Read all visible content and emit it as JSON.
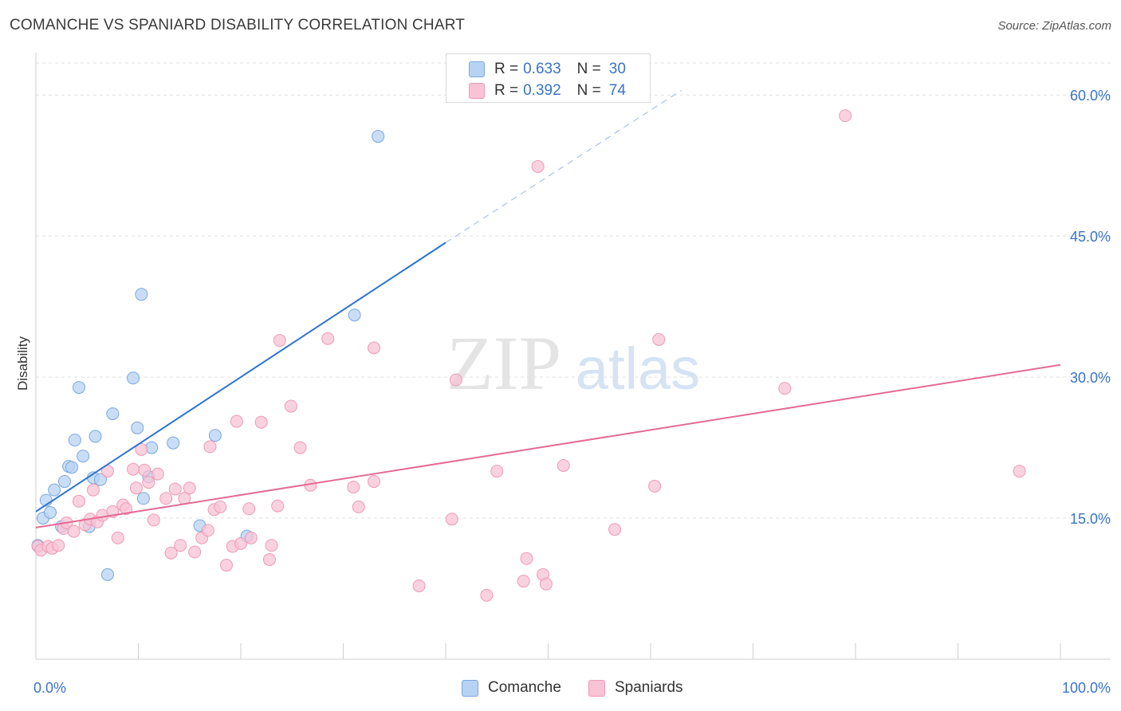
{
  "title": "COMANCHE VS SPANIARD DISABILITY CORRELATION CHART",
  "source": "Source: ZipAtlas.com",
  "watermark": {
    "zip": "ZIP",
    "atlas": "atlas"
  },
  "colors": {
    "comanche_fill": "#b7d3f3",
    "comanche_stroke": "#7aa7de",
    "comanche_line": "#2c73d2",
    "spaniards_fill": "#f8c3d4",
    "spaniards_stroke": "#ee9ab5",
    "spaniards_line": "#e46a95",
    "axis_label": "#3a73c9",
    "grid": "#e0e0e0"
  },
  "legend": {
    "comanche": {
      "r_label": "R =",
      "r_value": "0.633",
      "n_label": "N =",
      "n_value": "30"
    },
    "spaniards": {
      "r_label": "R =",
      "r_value": "0.392",
      "n_label": "N =",
      "n_value": "74"
    }
  },
  "chart_data": {
    "type": "scatter",
    "title": "COMANCHE VS SPANIARD DISABILITY CORRELATION CHART",
    "xlabel": "",
    "ylabel": "Disability",
    "xlim": [
      0,
      100
    ],
    "ylim": [
      0,
      64
    ],
    "x_tick_labels": [
      "0.0%",
      "100.0%"
    ],
    "y_ticks": [
      15,
      30,
      45,
      60
    ],
    "y_tick_labels": [
      "15.0%",
      "30.0%",
      "45.0%",
      "60.0%"
    ],
    "grid": true,
    "legend_position": "top-center",
    "series": [
      {
        "name": "Comanche",
        "points": [
          [
            0.2,
            12.1
          ],
          [
            0.7,
            15.0
          ],
          [
            1.0,
            16.9
          ],
          [
            1.4,
            15.6
          ],
          [
            1.8,
            18.0
          ],
          [
            2.5,
            14.1
          ],
          [
            2.8,
            18.9
          ],
          [
            3.2,
            20.5
          ],
          [
            3.5,
            20.4
          ],
          [
            3.8,
            23.3
          ],
          [
            4.2,
            28.9
          ],
          [
            4.6,
            21.6
          ],
          [
            5.2,
            14.1
          ],
          [
            5.6,
            19.3
          ],
          [
            5.8,
            23.7
          ],
          [
            6.3,
            19.1
          ],
          [
            7.5,
            26.1
          ],
          [
            7.0,
            9.0
          ],
          [
            9.5,
            29.9
          ],
          [
            9.9,
            24.6
          ],
          [
            10.3,
            38.8
          ],
          [
            10.5,
            17.1
          ],
          [
            11.0,
            19.4
          ],
          [
            11.3,
            22.5
          ],
          [
            13.4,
            23.0
          ],
          [
            16.0,
            14.2
          ],
          [
            17.5,
            23.8
          ],
          [
            20.6,
            13.1
          ],
          [
            31.1,
            36.6
          ],
          [
            33.4,
            55.6
          ]
        ],
        "trend": {
          "x0": 0,
          "y0": 15.7,
          "x1": 40,
          "y1": 44.3,
          "dashed_to_x": 63,
          "dashed_to_y": 60.5
        }
      },
      {
        "name": "Spaniards",
        "points": [
          [
            0.2,
            12.0
          ],
          [
            0.5,
            11.6
          ],
          [
            1.2,
            12.0
          ],
          [
            1.6,
            11.8
          ],
          [
            2.2,
            12.1
          ],
          [
            2.7,
            13.9
          ],
          [
            3.0,
            14.5
          ],
          [
            3.7,
            13.6
          ],
          [
            4.2,
            16.8
          ],
          [
            4.8,
            14.3
          ],
          [
            5.3,
            14.9
          ],
          [
            5.6,
            18.0
          ],
          [
            6.0,
            14.6
          ],
          [
            6.5,
            15.3
          ],
          [
            7.0,
            20.0
          ],
          [
            7.5,
            15.7
          ],
          [
            8.0,
            12.9
          ],
          [
            8.5,
            16.4
          ],
          [
            8.8,
            16.0
          ],
          [
            9.5,
            20.2
          ],
          [
            9.8,
            18.2
          ],
          [
            10.3,
            22.3
          ],
          [
            10.6,
            20.1
          ],
          [
            11.0,
            18.8
          ],
          [
            11.5,
            14.8
          ],
          [
            11.9,
            19.7
          ],
          [
            12.7,
            17.1
          ],
          [
            13.2,
            11.3
          ],
          [
            13.6,
            18.1
          ],
          [
            14.1,
            12.1
          ],
          [
            14.5,
            17.1
          ],
          [
            15.0,
            18.2
          ],
          [
            15.5,
            11.4
          ],
          [
            16.2,
            12.9
          ],
          [
            16.8,
            13.7
          ],
          [
            17.0,
            22.6
          ],
          [
            17.4,
            15.9
          ],
          [
            18.0,
            16.2
          ],
          [
            18.6,
            10.0
          ],
          [
            19.2,
            12.0
          ],
          [
            19.6,
            25.3
          ],
          [
            20.0,
            12.3
          ],
          [
            20.8,
            16.0
          ],
          [
            21.0,
            12.9
          ],
          [
            22.0,
            25.2
          ],
          [
            22.8,
            10.6
          ],
          [
            23.0,
            12.1
          ],
          [
            23.6,
            16.3
          ],
          [
            23.8,
            33.9
          ],
          [
            24.9,
            26.9
          ],
          [
            25.8,
            22.5
          ],
          [
            26.8,
            18.5
          ],
          [
            28.5,
            34.1
          ],
          [
            31.0,
            18.3
          ],
          [
            31.5,
            16.2
          ],
          [
            33.0,
            33.1
          ],
          [
            33.0,
            18.9
          ],
          [
            37.4,
            7.8
          ],
          [
            40.6,
            14.9
          ],
          [
            41.0,
            29.7
          ],
          [
            44.0,
            6.8
          ],
          [
            45.0,
            20.0
          ],
          [
            47.6,
            8.3
          ],
          [
            47.9,
            10.7
          ],
          [
            49.0,
            52.4
          ],
          [
            49.5,
            9.0
          ],
          [
            49.8,
            8.0
          ],
          [
            51.5,
            20.6
          ],
          [
            56.5,
            13.8
          ],
          [
            60.4,
            18.4
          ],
          [
            60.8,
            34.0
          ],
          [
            73.1,
            28.8
          ],
          [
            79.0,
            57.8
          ],
          [
            96.0,
            20.0
          ]
        ],
        "trend": {
          "x0": 0,
          "y0": 14.0,
          "x1": 100,
          "y1": 31.3
        }
      }
    ]
  }
}
